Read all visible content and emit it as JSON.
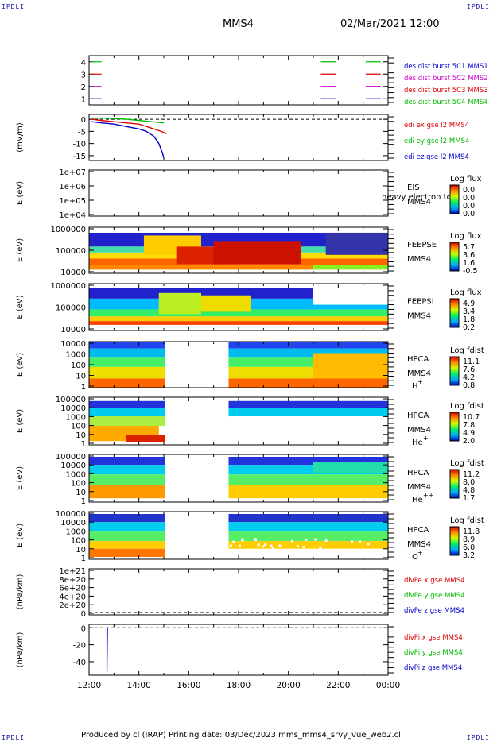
{
  "corner_tag": "IPDLI",
  "header": {
    "spacecraft": "MMS4",
    "date": "02/Mar/2021 12:00"
  },
  "footer": {
    "text": "Produced by cl (IRAP)   Printing date: 03/Dec/2023   mms_mms4_srvy_vue_web2.cl"
  },
  "colors": {
    "red": "#dd0000",
    "green": "#00bb00",
    "blue": "#0000cc",
    "magenta": "#cc00cc",
    "black": "#000000"
  },
  "chart_data": [
    {
      "type": "line",
      "panel": "burst",
      "ylim": [
        0.5,
        4.5
      ],
      "yticks": [
        "1",
        "2",
        "3",
        "4"
      ],
      "series": [
        {
          "name": "des dist burst 5C1 MMS1",
          "color": "#0000cc",
          "y": 1,
          "x_hours": [
            [
              0.1,
              0.5
            ],
            [
              9.3,
              9.9
            ],
            [
              11.1,
              11.7
            ]
          ]
        },
        {
          "name": "des dist burst 5C2 MMS2",
          "color": "#cc00cc",
          "y": 2,
          "x_hours": [
            [
              0.1,
              0.5
            ],
            [
              9.3,
              9.9
            ],
            [
              11.1,
              11.7
            ]
          ]
        },
        {
          "name": "des dist burst 5C3 MMS3",
          "color": "#dd0000",
          "y": 3,
          "x_hours": [
            [
              0.1,
              0.5
            ],
            [
              9.3,
              9.9
            ],
            [
              11.1,
              11.7
            ]
          ]
        },
        {
          "name": "des dist burst 5C4 MMS4",
          "color": "#00bb00",
          "y": 4,
          "x_hours": [
            [
              0.1,
              0.5
            ],
            [
              9.3,
              9.9
            ],
            [
              11.1,
              11.7
            ]
          ]
        }
      ]
    },
    {
      "type": "line",
      "panel": "edi",
      "ylabel": "(mV/m)",
      "ylim": [
        -17,
        2
      ],
      "yticks": [
        "0",
        "-5",
        "-10",
        "-15"
      ],
      "ytick_values": [
        0,
        -5,
        -10,
        -15
      ],
      "series": [
        {
          "name": "edi ex gse l2 MMS4",
          "color": "#dd0000",
          "x": [
            0.1,
            0.5,
            1.0,
            1.5,
            2.0,
            2.3,
            2.6,
            2.9,
            3.1
          ],
          "y": [
            0,
            -0.5,
            -1,
            -1.5,
            -2,
            -3,
            -4,
            -5,
            -6
          ]
        },
        {
          "name": "edi ey gse l2 MMS4",
          "color": "#00bb00",
          "x": [
            0.1,
            0.5,
            1.0,
            1.5,
            2.0,
            2.5,
            3.0
          ],
          "y": [
            0.5,
            0.5,
            0.3,
            0,
            -0.5,
            -1,
            -1.5
          ]
        },
        {
          "name": "edi ez gse l2 MMS4",
          "color": "#0000cc",
          "x": [
            0.1,
            0.5,
            1.0,
            1.5,
            2.0,
            2.3,
            2.6,
            2.8,
            2.95,
            3.0
          ],
          "y": [
            -1,
            -1.5,
            -2,
            -3,
            -4,
            -5,
            -7,
            -10,
            -14,
            -16
          ]
        }
      ]
    },
    {
      "type": "heatmap",
      "panel": "eis",
      "ylabel": "E (eV)",
      "yticks": [
        "1e+07",
        "1e+06",
        "1e+05",
        "1e+04"
      ],
      "instrument": "EIS",
      "instrument_overlay": "heavy electron to",
      "spacecraft": "MMS4",
      "colorbar_title": "Log flux",
      "colorbar_ticks": [
        "0.0",
        "0.0",
        "0.0",
        "0.0"
      ]
    },
    {
      "type": "heatmap",
      "panel": "feepse",
      "ylabel": "E (eV)",
      "yticks": [
        "1000000",
        "100000",
        "10000"
      ],
      "instrument": "FEEPSE",
      "spacecraft": "MMS4",
      "colorbar_title": "Log flux",
      "colorbar_ticks": [
        "5.7",
        "3.6",
        "1.6",
        "-0.5"
      ]
    },
    {
      "type": "heatmap",
      "panel": "feepsi",
      "ylabel": "E (eV)",
      "yticks": [
        "1000000",
        "100000",
        "10000"
      ],
      "instrument": "FEEPSI",
      "spacecraft": "MMS4",
      "colorbar_title": "Log flux",
      "colorbar_ticks": [
        "4.9",
        "3.4",
        "1.8",
        "0.2"
      ]
    },
    {
      "type": "heatmap",
      "panel": "hpca_h",
      "ylabel": "E (eV)",
      "yticks": [
        "10000",
        "1000",
        "100",
        "10",
        "1"
      ],
      "instrument": "HPCA",
      "spacecraft": "MMS4",
      "species": "H",
      "species_charge": "+",
      "colorbar_title": "Log fdist",
      "colorbar_ticks": [
        "11.1",
        "7.6",
        "4.2",
        "0.8"
      ]
    },
    {
      "type": "heatmap",
      "panel": "hpca_he",
      "ylabel": "E (eV)",
      "yticks": [
        "100000",
        "10000",
        "1000",
        "100",
        "10",
        "1"
      ],
      "instrument": "HPCA",
      "spacecraft": "MMS4",
      "species": "He",
      "species_charge": "+",
      "colorbar_title": "Log fdist",
      "colorbar_ticks": [
        "10.7",
        "7.8",
        "4.9",
        "2.0"
      ]
    },
    {
      "type": "heatmap",
      "panel": "hpca_hepp",
      "ylabel": "E (eV)",
      "yticks": [
        "100000",
        "10000",
        "1000",
        "100",
        "10",
        "1"
      ],
      "instrument": "HPCA",
      "spacecraft": "MMS4",
      "species": "He",
      "species_charge": "++",
      "colorbar_title": "Log fdist",
      "colorbar_ticks": [
        "11.2",
        "8.0",
        "4.8",
        "1.7"
      ]
    },
    {
      "type": "heatmap",
      "panel": "hpca_o",
      "ylabel": "E (eV)",
      "yticks": [
        "100000",
        "10000",
        "1000",
        "100",
        "10",
        "1"
      ],
      "instrument": "HPCA",
      "spacecraft": "MMS4",
      "species": "O",
      "species_charge": "+",
      "colorbar_title": "Log fdist",
      "colorbar_ticks": [
        "11.8",
        "8.9",
        "6.0",
        "3.2"
      ]
    },
    {
      "type": "line",
      "panel": "divpe",
      "ylabel": "(nPa/km)",
      "yticks": [
        "1e+21",
        "8e+20",
        "6e+20",
        "4e+20",
        "2e+20",
        "0"
      ],
      "series": [
        {
          "name": "divPe x gse MMS4",
          "color": "#dd0000"
        },
        {
          "name": "divPe y gse MMS4",
          "color": "#00bb00"
        },
        {
          "name": "divPe z gse MMS4",
          "color": "#0000cc"
        }
      ]
    },
    {
      "type": "line",
      "panel": "divpi",
      "ylabel": "(nPa/km)",
      "ylim": [
        -56,
        4
      ],
      "yticks": [
        "0",
        "-20",
        "-40"
      ],
      "ytick_values": [
        0,
        -20,
        -40
      ],
      "series": [
        {
          "name": "divPi x gse MMS4",
          "color": "#dd0000"
        },
        {
          "name": "divPi y gse MMS4",
          "color": "#00bb00"
        },
        {
          "name": "divPi z gse MMS4",
          "color": "#0000cc",
          "x": [
            0.7,
            0.72,
            0.72,
            0.74
          ],
          "y": [
            0,
            0,
            -52,
            0
          ]
        }
      ]
    }
  ],
  "time_axis": {
    "xlim_hours": [
      0,
      12
    ],
    "ticks": [
      "12:00",
      "14:00",
      "16:00",
      "18:00",
      "20:00",
      "22:00",
      "00:00"
    ]
  }
}
